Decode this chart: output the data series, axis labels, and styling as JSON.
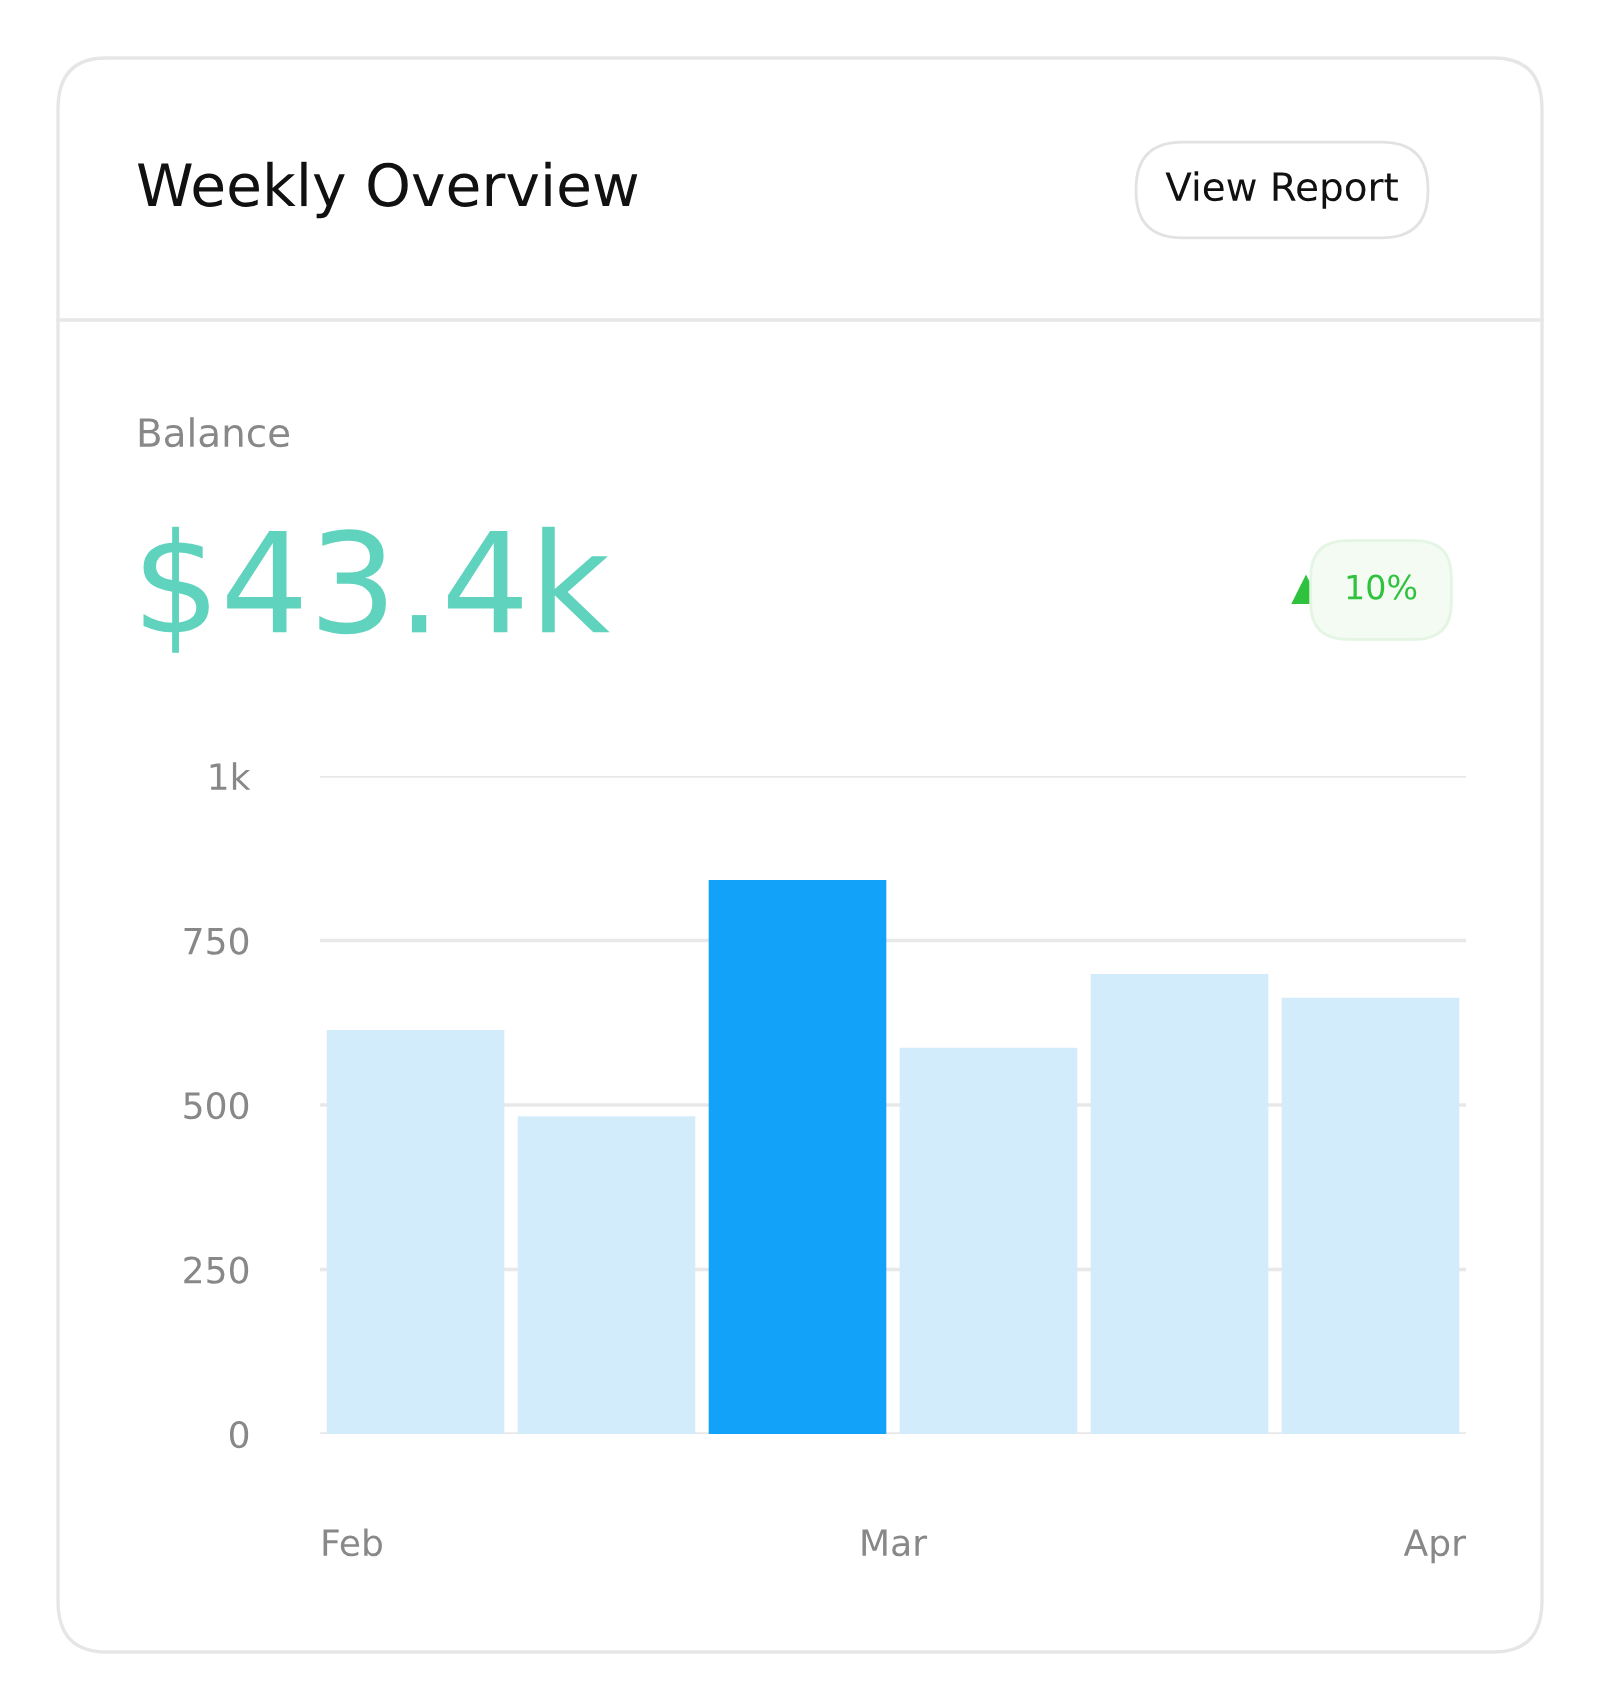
{
  "chart_data": {
    "type": "bar",
    "title": "Weekly Overview",
    "categories": [
      null,
      null,
      null,
      null,
      null,
      null
    ],
    "values": [
      614,
      483,
      842,
      587,
      699,
      663
    ],
    "colors": [
      "#d3ecfb",
      "#d3ecfb",
      "#13a2f9",
      "#d3ecfb",
      "#d3ecfb",
      "#d3ecfb"
    ],
    "ylim": [
      0,
      1000
    ],
    "yticks": [
      0,
      250,
      500,
      750,
      {
        "value": 1000,
        "label": "1k"
      }
    ],
    "grid": "y",
    "annotations": [
      "View Report",
      "Balance",
      "$43.4k",
      "10%",
      "Feb",
      "Mar",
      "Apr"
    ]
  }
}
